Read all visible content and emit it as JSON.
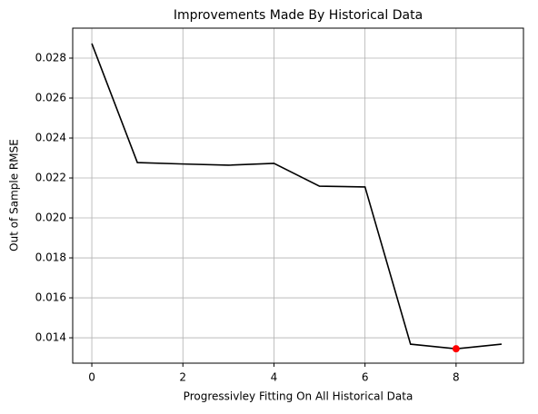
{
  "chart_data": {
    "type": "line",
    "title": "Improvements Made By Historical Data",
    "x_label": "Progressivley Fitting On All Historical Data",
    "y_label": "Out of Sample RMSE",
    "x": [
      0,
      1,
      2,
      3,
      4,
      5,
      6,
      7,
      8,
      9
    ],
    "series": [
      {
        "color": "#000000",
        "values": [
          0.02873,
          0.02277,
          0.0227,
          0.02264,
          0.02273,
          0.02159,
          0.02155,
          0.01368,
          0.01345,
          0.01368
        ]
      }
    ],
    "highlight": {
      "x": 8,
      "y": 0.01345,
      "color": "#ff0000"
    },
    "xlim": [
      -0.42,
      9.48
    ],
    "xticks": [
      0,
      2,
      4,
      6,
      8
    ],
    "ylim": [
      0.01273,
      0.0295
    ],
    "yticks": [
      {
        "value": 0.014,
        "label": "0.014"
      },
      {
        "value": 0.016,
        "label": "0.016"
      },
      {
        "value": 0.018,
        "label": "0.018"
      },
      {
        "value": 0.02,
        "label": "0.020"
      },
      {
        "value": 0.022,
        "label": "0.022"
      },
      {
        "value": 0.024,
        "label": "0.024"
      },
      {
        "value": 0.026,
        "label": "0.026"
      },
      {
        "value": 0.028,
        "label": "0.028"
      }
    ],
    "grid": true
  }
}
